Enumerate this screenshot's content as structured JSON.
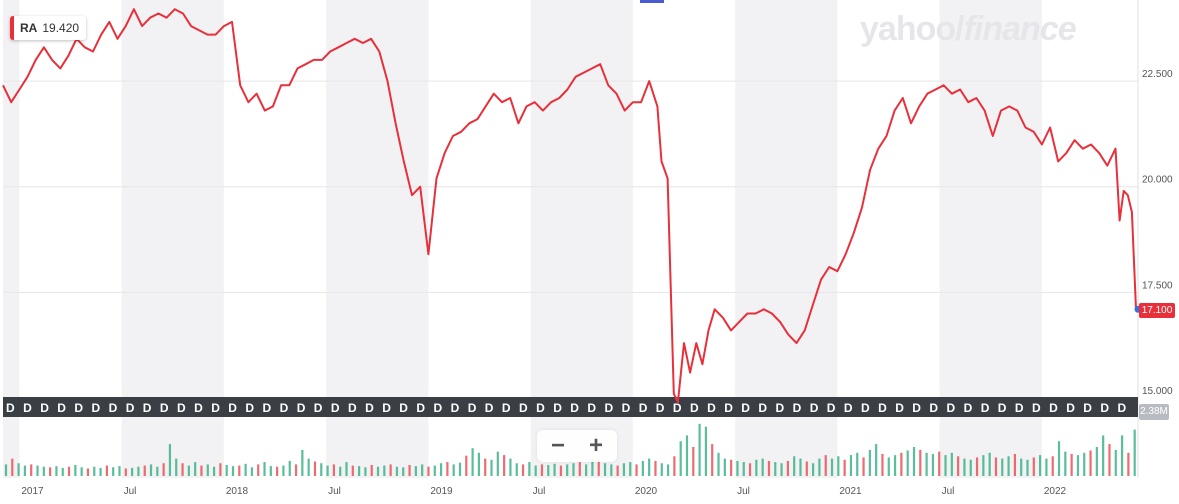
{
  "ticker": {
    "symbol": "RA",
    "value": "19.420",
    "color": "#e8303a"
  },
  "logo": {
    "brand": "yahoo",
    "slash": "/",
    "product": "finance"
  },
  "last_price_label": "17.100",
  "volume_label": "2.38M",
  "dividend_marker_letter": "D",
  "zoom": {
    "out_label": "−",
    "in_label": "+"
  },
  "colors": {
    "line": "#e8303a",
    "band": "#f2f2f4",
    "vol_up": "#2fae7f",
    "vol_down": "#e8474f",
    "dividend_bar": "#3a3f45"
  },
  "chart_data": {
    "type": "line",
    "title": "",
    "xlabel": "",
    "ylabel": "",
    "ylim": [
      15.0,
      24.3
    ],
    "y_ticks": [
      15.0,
      17.5,
      20.0,
      22.5
    ],
    "y_tick_labels": [
      "15.000",
      "17.500",
      "20.000",
      "22.500"
    ],
    "x_ticks": [
      {
        "t": 2017.0,
        "label": "2017"
      },
      {
        "t": 2017.5,
        "label": "Jul"
      },
      {
        "t": 2018.0,
        "label": "2018"
      },
      {
        "t": 2018.5,
        "label": "Jul"
      },
      {
        "t": 2019.0,
        "label": "2019"
      },
      {
        "t": 2019.5,
        "label": "Jul"
      },
      {
        "t": 2020.0,
        "label": "2020"
      },
      {
        "t": 2020.5,
        "label": "Jul"
      },
      {
        "t": 2021.0,
        "label": "2021"
      },
      {
        "t": 2021.5,
        "label": "Jul"
      },
      {
        "t": 2022.0,
        "label": "2022"
      }
    ],
    "xlim": [
      2016.92,
      2022.47
    ],
    "grid": true,
    "legend": "none",
    "series": [
      {
        "values": [
          [
            2016.92,
            22.4
          ],
          [
            2016.96,
            22.0
          ],
          [
            2017.0,
            22.3
          ],
          [
            2017.04,
            22.6
          ],
          [
            2017.08,
            23.0
          ],
          [
            2017.12,
            23.3
          ],
          [
            2017.16,
            23.0
          ],
          [
            2017.2,
            22.8
          ],
          [
            2017.24,
            23.1
          ],
          [
            2017.28,
            23.5
          ],
          [
            2017.32,
            23.3
          ],
          [
            2017.36,
            23.2
          ],
          [
            2017.4,
            23.6
          ],
          [
            2017.44,
            23.9
          ],
          [
            2017.48,
            23.5
          ],
          [
            2017.52,
            23.8
          ],
          [
            2017.56,
            24.2
          ],
          [
            2017.6,
            23.8
          ],
          [
            2017.64,
            24.0
          ],
          [
            2017.68,
            24.1
          ],
          [
            2017.72,
            24.0
          ],
          [
            2017.76,
            24.2
          ],
          [
            2017.8,
            24.1
          ],
          [
            2017.84,
            23.8
          ],
          [
            2017.88,
            23.7
          ],
          [
            2017.92,
            23.6
          ],
          [
            2017.96,
            23.6
          ],
          [
            2018.0,
            23.8
          ],
          [
            2018.04,
            23.9
          ],
          [
            2018.08,
            22.4
          ],
          [
            2018.12,
            22.0
          ],
          [
            2018.16,
            22.2
          ],
          [
            2018.2,
            21.8
          ],
          [
            2018.24,
            21.9
          ],
          [
            2018.28,
            22.4
          ],
          [
            2018.32,
            22.4
          ],
          [
            2018.36,
            22.8
          ],
          [
            2018.4,
            22.9
          ],
          [
            2018.44,
            23.0
          ],
          [
            2018.48,
            23.0
          ],
          [
            2018.52,
            23.2
          ],
          [
            2018.56,
            23.3
          ],
          [
            2018.6,
            23.4
          ],
          [
            2018.64,
            23.5
          ],
          [
            2018.68,
            23.4
          ],
          [
            2018.72,
            23.5
          ],
          [
            2018.76,
            23.2
          ],
          [
            2018.8,
            22.5
          ],
          [
            2018.84,
            21.5
          ],
          [
            2018.88,
            20.6
          ],
          [
            2018.92,
            19.8
          ],
          [
            2018.96,
            20.0
          ],
          [
            2019.0,
            18.4
          ],
          [
            2019.04,
            20.2
          ],
          [
            2019.08,
            20.8
          ],
          [
            2019.12,
            21.2
          ],
          [
            2019.16,
            21.3
          ],
          [
            2019.2,
            21.5
          ],
          [
            2019.24,
            21.6
          ],
          [
            2019.28,
            21.9
          ],
          [
            2019.32,
            22.2
          ],
          [
            2019.36,
            22.0
          ],
          [
            2019.4,
            22.1
          ],
          [
            2019.44,
            21.5
          ],
          [
            2019.48,
            21.9
          ],
          [
            2019.52,
            22.0
          ],
          [
            2019.56,
            21.8
          ],
          [
            2019.6,
            22.0
          ],
          [
            2019.64,
            22.1
          ],
          [
            2019.68,
            22.3
          ],
          [
            2019.72,
            22.6
          ],
          [
            2019.76,
            22.7
          ],
          [
            2019.8,
            22.8
          ],
          [
            2019.84,
            22.9
          ],
          [
            2019.88,
            22.4
          ],
          [
            2019.92,
            22.2
          ],
          [
            2019.96,
            21.8
          ],
          [
            2020.0,
            22.0
          ],
          [
            2020.04,
            22.0
          ],
          [
            2020.08,
            22.5
          ],
          [
            2020.12,
            21.9
          ],
          [
            2020.14,
            20.6
          ],
          [
            2020.17,
            20.2
          ],
          [
            2020.2,
            15.1
          ],
          [
            2020.22,
            14.9
          ],
          [
            2020.25,
            16.3
          ],
          [
            2020.28,
            15.6
          ],
          [
            2020.31,
            16.3
          ],
          [
            2020.34,
            15.8
          ],
          [
            2020.37,
            16.6
          ],
          [
            2020.4,
            17.1
          ],
          [
            2020.44,
            16.9
          ],
          [
            2020.48,
            16.6
          ],
          [
            2020.52,
            16.8
          ],
          [
            2020.56,
            17.0
          ],
          [
            2020.6,
            17.0
          ],
          [
            2020.64,
            17.1
          ],
          [
            2020.68,
            17.0
          ],
          [
            2020.72,
            16.8
          ],
          [
            2020.76,
            16.5
          ],
          [
            2020.8,
            16.3
          ],
          [
            2020.84,
            16.6
          ],
          [
            2020.88,
            17.2
          ],
          [
            2020.92,
            17.8
          ],
          [
            2020.96,
            18.1
          ],
          [
            2021.0,
            18.0
          ],
          [
            2021.04,
            18.4
          ],
          [
            2021.08,
            18.9
          ],
          [
            2021.12,
            19.5
          ],
          [
            2021.16,
            20.4
          ],
          [
            2021.2,
            20.9
          ],
          [
            2021.24,
            21.2
          ],
          [
            2021.28,
            21.8
          ],
          [
            2021.32,
            22.1
          ],
          [
            2021.36,
            21.5
          ],
          [
            2021.4,
            21.9
          ],
          [
            2021.44,
            22.2
          ],
          [
            2021.48,
            22.3
          ],
          [
            2021.52,
            22.4
          ],
          [
            2021.56,
            22.2
          ],
          [
            2021.6,
            22.3
          ],
          [
            2021.64,
            22.0
          ],
          [
            2021.68,
            22.1
          ],
          [
            2021.72,
            21.8
          ],
          [
            2021.76,
            21.2
          ],
          [
            2021.8,
            21.8
          ],
          [
            2021.84,
            21.9
          ],
          [
            2021.88,
            21.8
          ],
          [
            2021.92,
            21.4
          ],
          [
            2021.96,
            21.3
          ],
          [
            2022.0,
            21.0
          ],
          [
            2022.04,
            21.4
          ],
          [
            2022.08,
            20.6
          ],
          [
            2022.12,
            20.8
          ],
          [
            2022.16,
            21.1
          ],
          [
            2022.2,
            20.9
          ],
          [
            2022.24,
            21.0
          ],
          [
            2022.28,
            20.8
          ],
          [
            2022.32,
            20.5
          ],
          [
            2022.36,
            20.9
          ],
          [
            2022.38,
            19.2
          ],
          [
            2022.4,
            19.9
          ],
          [
            2022.42,
            19.8
          ],
          [
            2022.44,
            19.4
          ],
          [
            2022.46,
            17.1
          ]
        ]
      }
    ],
    "volume": [
      0.2,
      0.3,
      0.22,
      0.18,
      0.2,
      0.18,
      0.16,
      0.15,
      0.17,
      0.14,
      0.16,
      0.19,
      0.15,
      0.13,
      0.16,
      0.14,
      0.18,
      0.15,
      0.17,
      0.13,
      0.14,
      0.16,
      0.18,
      0.2,
      0.16,
      0.22,
      0.55,
      0.3,
      0.22,
      0.18,
      0.24,
      0.18,
      0.2,
      0.16,
      0.22,
      0.19,
      0.17,
      0.18,
      0.21,
      0.15,
      0.2,
      0.24,
      0.17,
      0.16,
      0.18,
      0.26,
      0.2,
      0.45,
      0.3,
      0.25,
      0.22,
      0.18,
      0.2,
      0.16,
      0.24,
      0.18,
      0.17,
      0.15,
      0.19,
      0.16,
      0.18,
      0.2,
      0.16,
      0.15,
      0.19,
      0.17,
      0.2,
      0.16,
      0.18,
      0.22,
      0.24,
      0.2,
      0.23,
      0.35,
      0.48,
      0.4,
      0.3,
      0.28,
      0.42,
      0.36,
      0.3,
      0.22,
      0.2,
      0.24,
      0.18,
      0.2,
      0.19,
      0.21,
      0.18,
      0.2,
      0.22,
      0.24,
      0.2,
      0.3,
      0.28,
      0.22,
      0.2,
      0.18,
      0.22,
      0.24,
      0.2,
      0.26,
      0.3,
      0.26,
      0.22,
      0.2,
      0.34,
      0.6,
      0.7,
      0.5,
      0.9,
      0.85,
      0.55,
      0.4,
      0.3,
      0.28,
      0.26,
      0.24,
      0.22,
      0.28,
      0.3,
      0.26,
      0.24,
      0.22,
      0.26,
      0.34,
      0.3,
      0.25,
      0.22,
      0.3,
      0.36,
      0.3,
      0.34,
      0.28,
      0.36,
      0.4,
      0.32,
      0.45,
      0.55,
      0.38,
      0.32,
      0.36,
      0.4,
      0.44,
      0.5,
      0.45,
      0.4,
      0.38,
      0.42,
      0.36,
      0.4,
      0.34,
      0.3,
      0.28,
      0.32,
      0.36,
      0.4,
      0.32,
      0.3,
      0.34,
      0.38,
      0.3,
      0.28,
      0.32,
      0.36,
      0.3,
      0.34,
      0.6,
      0.42,
      0.38,
      0.36,
      0.4,
      0.44,
      0.5,
      0.7,
      0.55,
      0.45,
      0.7,
      0.4,
      0.8
    ]
  }
}
